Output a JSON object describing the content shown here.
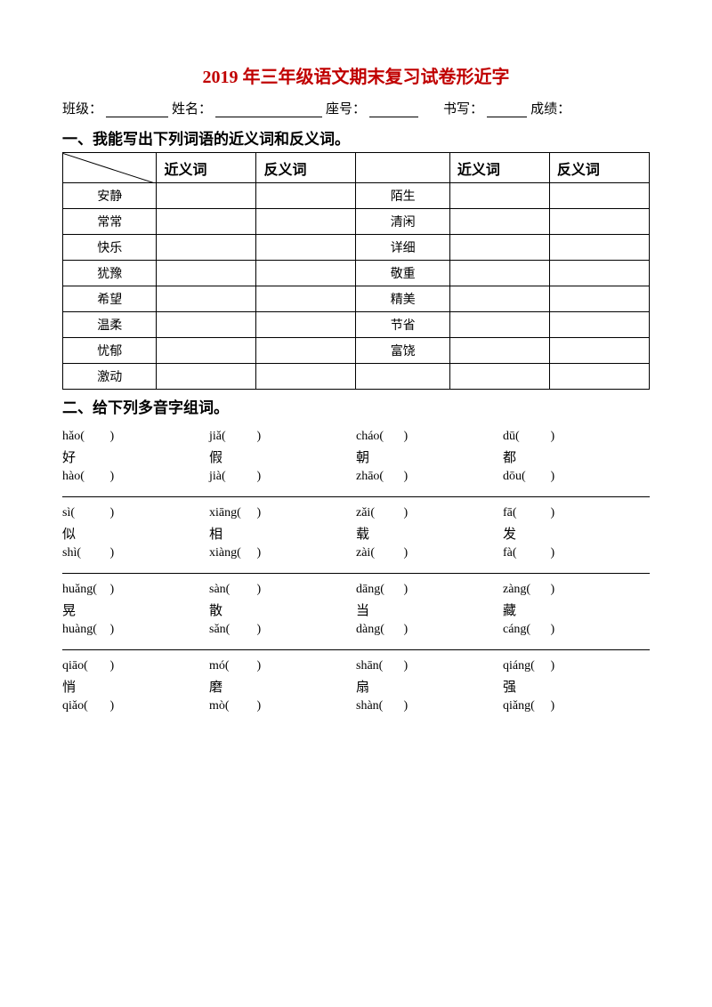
{
  "title": {
    "text": "2019 年三年级语文期末复习试卷形近字",
    "color": "#c00000"
  },
  "info": {
    "class_label": "班级：",
    "name_label": "姓名：",
    "seat_label": "座号：",
    "write_label": "书写：",
    "score_label": "成绩："
  },
  "section1": {
    "heading": "一、我能写出下列词语的近义词和反义词。",
    "headers": [
      "",
      "近义词",
      "反义词",
      "",
      "近义词",
      "反义词"
    ],
    "rows": [
      [
        "安静",
        "",
        "",
        "陌生",
        "",
        ""
      ],
      [
        "常常",
        "",
        "",
        "清闲",
        "",
        ""
      ],
      [
        "快乐",
        "",
        "",
        "详细",
        "",
        ""
      ],
      [
        "犹豫",
        "",
        "",
        "敬重",
        "",
        ""
      ],
      [
        "希望",
        "",
        "",
        "精美",
        "",
        ""
      ],
      [
        "温柔",
        "",
        "",
        "节省",
        "",
        ""
      ],
      [
        "忧郁",
        "",
        "",
        "富饶",
        "",
        ""
      ],
      [
        "激动",
        "",
        "",
        "",
        "",
        ""
      ]
    ]
  },
  "section2": {
    "heading": "二、给下列多音字组词。",
    "groups": [
      {
        "top": [
          "hǎo",
          "jiǎ",
          "cháo",
          "dū"
        ],
        "char": [
          "好",
          "假",
          "朝",
          "都"
        ],
        "bot": [
          "hào",
          "jià",
          "zhāo",
          "dōu"
        ]
      },
      {
        "top": [
          "sì",
          "xiāng",
          "zǎi",
          "fā"
        ],
        "char": [
          "似",
          "相",
          "载",
          "发"
        ],
        "bot": [
          "shì",
          "xiàng",
          "zài",
          "fà"
        ]
      },
      {
        "top": [
          "huǎng",
          "sàn",
          "dāng",
          "zàng"
        ],
        "char": [
          "晃",
          "散",
          "当",
          "藏"
        ],
        "bot": [
          "huàng",
          "sǎn",
          "dàng",
          "cáng"
        ]
      },
      {
        "top": [
          "qiāo",
          "mó",
          "shān",
          "qiáng"
        ],
        "char": [
          "悄",
          "磨",
          "扇",
          "强"
        ],
        "bot": [
          "qiǎo",
          "mò",
          "shàn",
          "qiǎng"
        ]
      }
    ]
  }
}
